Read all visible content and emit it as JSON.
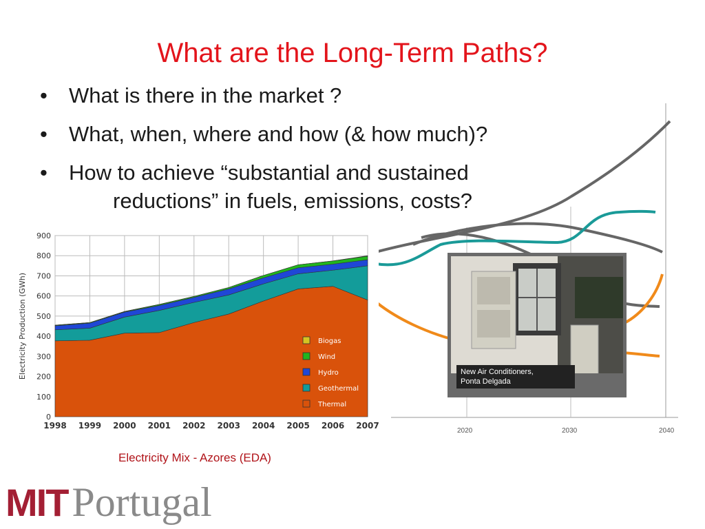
{
  "slide": {
    "title": "What are the Long-Term Paths?",
    "bullets": [
      "What is there in the market ?",
      "What, when, where and how (& how much)?",
      "How to achieve “substantial and sustained"
    ],
    "bullet3_cont": "reductions” in fuels, emissions, costs?",
    "chart_caption": "Electricity Mix - Azores (EDA)",
    "photo_caption_1": "New Air Conditioners,",
    "photo_caption_2": "Ponta Delgada",
    "logo_mit": "MIT",
    "logo_portugal": "Portugal"
  },
  "bg_axis": {
    "ticks": [
      "2020",
      "2030",
      "2040"
    ]
  },
  "chart_data": [
    {
      "type": "area",
      "stacked": true,
      "x": [
        "1998",
        "1999",
        "2000",
        "2001",
        "2002",
        "2003",
        "2004",
        "2005",
        "2006",
        "2007"
      ],
      "ylabel": "Electricity Production (GWh)",
      "ylim": [
        0,
        900
      ],
      "yticks": [
        0,
        100,
        200,
        300,
        400,
        500,
        600,
        700,
        800,
        900
      ],
      "grid": true,
      "legend_position": "bottom-right",
      "series": [
        {
          "name": "Thermal",
          "color": "#d9520b",
          "values": [
            377,
            380,
            415,
            418,
            468,
            510,
            575,
            635,
            648,
            580
          ]
        },
        {
          "name": "Geothermal",
          "color": "#139c9a",
          "values": [
            55,
            60,
            80,
            110,
            100,
            95,
            85,
            75,
            80,
            170
          ]
        },
        {
          "name": "Hydro",
          "color": "#1f47d6",
          "values": [
            20,
            25,
            25,
            25,
            25,
            30,
            30,
            30,
            30,
            30
          ]
        },
        {
          "name": "Wind",
          "color": "#22b51e",
          "values": [
            3,
            3,
            3,
            5,
            5,
            7,
            12,
            15,
            16,
            18
          ]
        },
        {
          "name": "Biogas",
          "color": "#d6c421",
          "values": [
            0,
            0,
            0,
            0,
            0,
            0,
            0,
            0,
            0,
            2
          ]
        }
      ]
    }
  ]
}
